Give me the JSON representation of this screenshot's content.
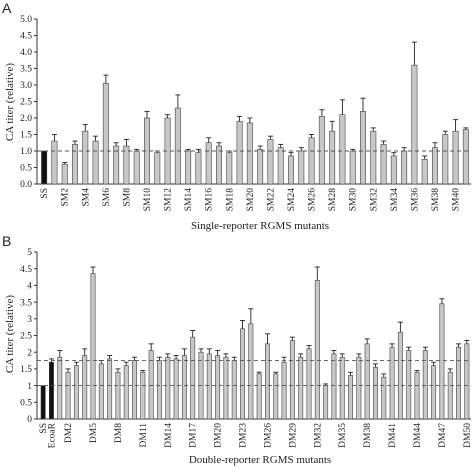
{
  "chart_data": [
    {
      "panel": "A",
      "type": "bar",
      "xlabel": "Single-reporter RGMS mutants",
      "ylabel": "CA titer (relative)",
      "ylim": [
        0,
        5
      ],
      "yticks": [
        "0.0",
        "0.5",
        "1.0",
        "1.5",
        "2.0",
        "2.5",
        "3.0",
        "3.5",
        "4.0",
        "4.5",
        "5.0"
      ],
      "reference_line": 1.0,
      "error_bars": "upper",
      "categories": [
        "SS",
        "SM1",
        "SM2",
        "SM3",
        "SM4",
        "SM5",
        "SM6",
        "SM7",
        "SM8",
        "SM9",
        "SM10",
        "SM11",
        "SM12",
        "SM13",
        "SM14",
        "SM15",
        "SM16",
        "SM17",
        "SM18",
        "SM19",
        "SM20",
        "SM21",
        "SM22",
        "SM23",
        "SM24",
        "SM25",
        "SM26",
        "SM27",
        "SM28",
        "SM29",
        "SM30",
        "SM31",
        "SM32",
        "SM33",
        "SM34",
        "SM35",
        "SM36",
        "SM37",
        "SM38",
        "SM39",
        "SM40",
        "SM41"
      ],
      "tick_labels": [
        "SS",
        "",
        "SM2",
        "",
        "SM4",
        "",
        "SM6",
        "",
        "SM8",
        "",
        "SM10",
        "",
        "SM12",
        "",
        "SM14",
        "",
        "SM16",
        "",
        "SM18",
        "",
        "SM20",
        "",
        "SM22",
        "",
        "SM24",
        "",
        "SM26",
        "",
        "SM28",
        "",
        "SM30",
        "",
        "SM32",
        "",
        "SM34",
        "",
        "SM36",
        "",
        "SM38",
        "",
        "SM40",
        ""
      ],
      "values": [
        1.0,
        1.3,
        0.6,
        1.2,
        1.6,
        1.3,
        3.05,
        1.15,
        1.15,
        1.0,
        2.0,
        0.95,
        2.0,
        2.3,
        1.0,
        0.95,
        1.25,
        1.15,
        0.95,
        1.9,
        1.85,
        1.05,
        1.35,
        1.1,
        0.85,
        1.0,
        1.4,
        2.05,
        1.6,
        2.1,
        1.0,
        2.2,
        1.6,
        1.2,
        0.85,
        1.0,
        3.6,
        0.75,
        1.1,
        1.5,
        1.6,
        1.65
      ],
      "errors": [
        0.0,
        0.2,
        0.05,
        0.1,
        0.2,
        0.15,
        0.25,
        0.1,
        0.2,
        0.05,
        0.2,
        0.05,
        0.1,
        0.4,
        0.05,
        0.1,
        0.15,
        0.1,
        0.05,
        0.15,
        0.15,
        0.1,
        0.1,
        0.1,
        0.1,
        0.1,
        0.1,
        0.2,
        0.3,
        0.45,
        0.05,
        0.4,
        0.1,
        0.1,
        0.1,
        0.1,
        0.7,
        0.1,
        0.15,
        0.1,
        0.35,
        0.05
      ],
      "highlight_color": "#111111",
      "bar_color": "#c8c8c8"
    },
    {
      "panel": "B",
      "type": "bar",
      "xlabel": "Double-reporter RGMS mutants",
      "ylabel": "CA titer (relative)",
      "ylim": [
        0,
        5
      ],
      "yticks": [
        "0",
        "0.5",
        "1",
        "1.5",
        "2",
        "2.5",
        "3",
        "3.5",
        "4",
        "4.5",
        "5"
      ],
      "reference_lines": [
        1.0,
        1.75
      ],
      "error_bars": "upper",
      "categories": [
        "SS",
        "EcoaR",
        "DM1",
        "DM2",
        "DM3",
        "DM4",
        "DM5",
        "DM6",
        "DM7",
        "DM8",
        "DM9",
        "DM10",
        "DM11",
        "DM12",
        "DM13",
        "DM14",
        "DM15",
        "DM16",
        "DM17",
        "DM18",
        "DM19",
        "DM20",
        "DM21",
        "DM22",
        "DM23",
        "DM24",
        "DM25",
        "DM26",
        "DM27",
        "DM28",
        "DM29",
        "DM30",
        "DM31",
        "DM32",
        "DM33",
        "DM34",
        "DM35",
        "DM36",
        "DM37",
        "DM38",
        "DM39",
        "DM40",
        "DM41",
        "DM42",
        "DM43",
        "DM44",
        "DM45",
        "DM46",
        "DM47",
        "DM48",
        "DM49",
        "DM50"
      ],
      "tick_labels": [
        "SS",
        "EcoaR",
        "",
        "DM2",
        "",
        "",
        "DM5",
        "",
        "",
        "DM8",
        "",
        "",
        "DM11",
        "",
        "",
        "DM14",
        "",
        "",
        "DM17",
        "",
        "",
        "DM20",
        "",
        "",
        "DM23",
        "",
        "",
        "DM26",
        "",
        "",
        "DM29",
        "",
        "",
        "DM32",
        "",
        "",
        "DM35",
        "",
        "",
        "DM38",
        "",
        "",
        "DM41",
        "",
        "",
        "DM44",
        "",
        "",
        "DM47",
        "",
        "",
        "DM50"
      ],
      "values": [
        1.0,
        1.7,
        1.85,
        1.4,
        1.6,
        1.9,
        4.35,
        1.65,
        1.8,
        1.4,
        1.6,
        1.75,
        1.4,
        2.05,
        1.75,
        1.85,
        1.8,
        1.9,
        2.45,
        2.0,
        1.95,
        1.9,
        1.85,
        1.75,
        2.7,
        2.85,
        1.35,
        2.25,
        1.35,
        1.7,
        2.35,
        1.85,
        2.1,
        4.15,
        1.0,
        1.95,
        1.85,
        1.3,
        1.85,
        2.25,
        1.55,
        1.25,
        2.15,
        2.6,
        2.05,
        1.4,
        2.05,
        1.6,
        3.45,
        1.4,
        2.15,
        2.25
      ],
      "errors": [
        0.0,
        0.1,
        0.2,
        0.1,
        0.1,
        0.2,
        0.2,
        0.1,
        0.1,
        0.1,
        0.1,
        0.1,
        0.05,
        0.2,
        0.1,
        0.1,
        0.1,
        0.2,
        0.2,
        0.1,
        0.15,
        0.15,
        0.1,
        0.1,
        0.25,
        0.45,
        0.05,
        0.3,
        0.05,
        0.15,
        0.1,
        0.1,
        0.1,
        0.4,
        0.05,
        0.1,
        0.1,
        0.1,
        0.1,
        0.15,
        0.1,
        0.1,
        0.1,
        0.3,
        0.1,
        0.05,
        0.1,
        0.1,
        0.15,
        0.1,
        0.1,
        0.1
      ],
      "highlight_color": "#111111",
      "bar_color": "#c8c8c8"
    }
  ]
}
